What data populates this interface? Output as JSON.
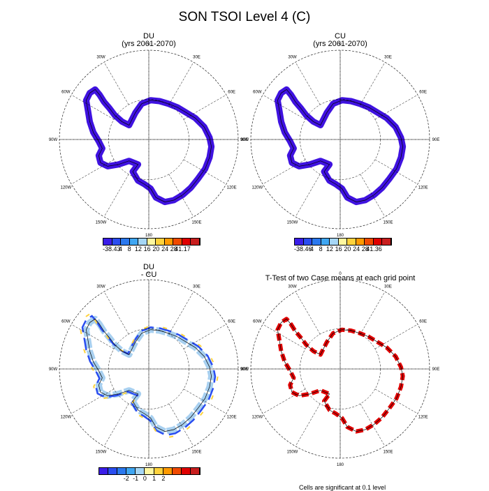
{
  "figure": {
    "title": "SON TSOI Level 4 (C)",
    "footer_note": "Cells are significant at 0.1 level"
  },
  "panels": [
    {
      "id": "du",
      "title_line1": "DU",
      "title_line2": "(yrs 2061-2070)",
      "field_color": "#3f12e0"
    },
    {
      "id": "cu",
      "title_line1": "CU",
      "title_line2": "(yrs 2061-2070)",
      "field_color": "#3f12e0"
    },
    {
      "id": "diff",
      "title_line1": "DU",
      "title_line2": "- CU",
      "field_color": "#9ecbee"
    },
    {
      "id": "ttest",
      "title_line1": "T-Test of two Case means at each grid point",
      "title_line2": "",
      "field_color": "#e00000"
    }
  ],
  "map_ticks": {
    "longitudes": [
      "0",
      "30E",
      "60E",
      "90E",
      "120E",
      "150E",
      "180",
      "150W",
      "120W",
      "90W",
      "60W",
      "30W"
    ]
  },
  "colorbars": {
    "du": {
      "colors": [
        "#3a1de8",
        "#2a4df0",
        "#2a78ee",
        "#3fa6f2",
        "#a6d6f5",
        "#fff7a0",
        "#ffd23c",
        "#ff9a00",
        "#f04a00",
        "#e00000",
        "#c81e1e"
      ],
      "labels": [
        "-38.43",
        "4",
        "8",
        "12",
        "16",
        "20",
        "24",
        "28",
        "41.17"
      ]
    },
    "cu": {
      "colors": [
        "#3a1de8",
        "#2a4df0",
        "#2a78ee",
        "#3fa6f2",
        "#a6d6f5",
        "#fff7a0",
        "#ffd23c",
        "#ff9a00",
        "#f04a00",
        "#e00000",
        "#c81e1e"
      ],
      "labels": [
        "-38.46",
        "4",
        "8",
        "12",
        "16",
        "20",
        "24",
        "28",
        "41.36"
      ]
    },
    "diff": {
      "colors": [
        "#3a1de8",
        "#2a4df0",
        "#2a78ee",
        "#3fa6f2",
        "#a6d6f5",
        "#fff7a0",
        "#ffd23c",
        "#ff9a00",
        "#f04a00",
        "#e00000",
        "#c81e1e"
      ],
      "labels": [
        "-2",
        "-1",
        "0",
        "1",
        "2"
      ]
    }
  }
}
